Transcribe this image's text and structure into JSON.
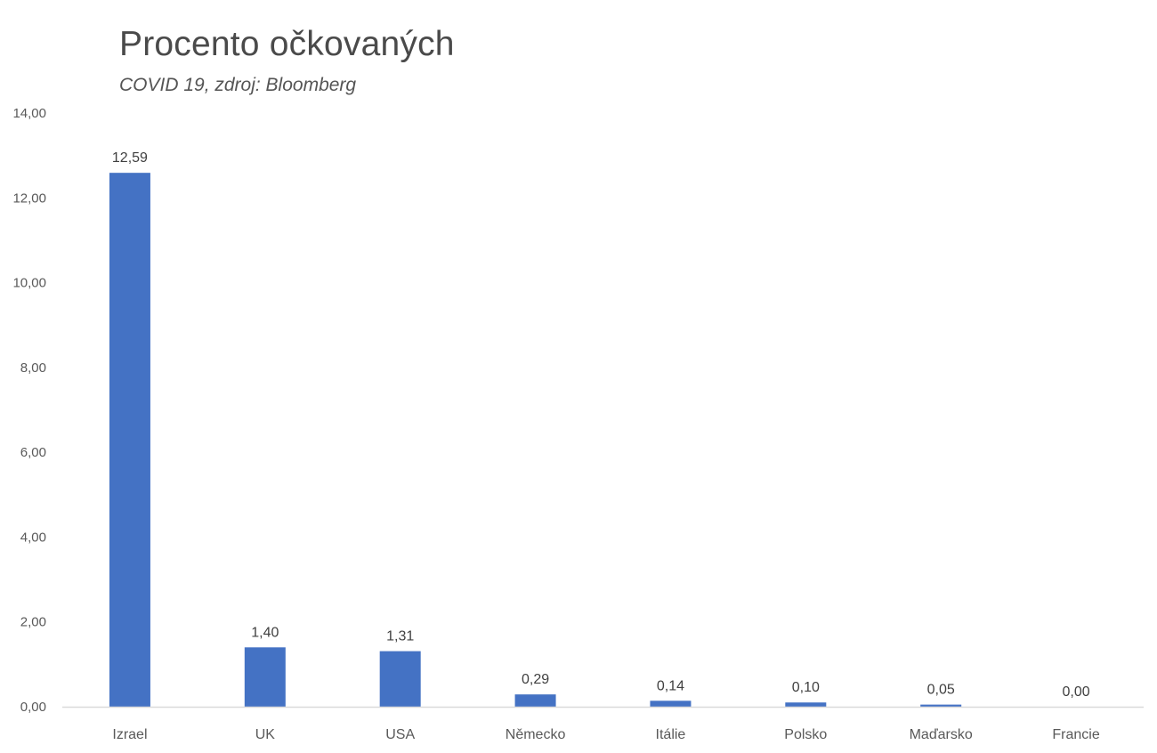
{
  "chart_data": {
    "type": "bar",
    "title": "Procento očkovaných",
    "subtitle": "COVID 19, zdroj: Bloomberg",
    "categories": [
      "Izrael",
      "UK",
      "USA",
      "Německo",
      "Itálie",
      "Polsko",
      "Maďarsko",
      "Francie"
    ],
    "values": [
      12.59,
      1.4,
      1.31,
      0.29,
      0.14,
      0.1,
      0.05,
      0.0
    ],
    "data_labels": [
      "12,59",
      "1,40",
      "1,31",
      "0,29",
      "0,14",
      "0,10",
      "0,05",
      "0,00"
    ],
    "ylim": [
      0,
      14
    ],
    "yticks": [
      0,
      2,
      4,
      6,
      8,
      10,
      12,
      14
    ],
    "ytick_labels": [
      "0,00",
      "2,00",
      "4,00",
      "6,00",
      "8,00",
      "10,00",
      "12,00",
      "14,00"
    ],
    "grid": false,
    "legend": "none",
    "bar_color": "#4472c4",
    "axis_color": "#d9d9d9"
  }
}
